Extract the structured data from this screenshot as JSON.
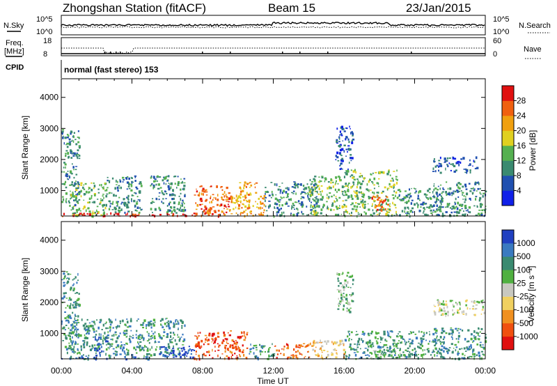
{
  "header": {
    "title": "Zhongshan Station (fitACF)",
    "beam": "Beam 15",
    "date": "23/Jan/2015"
  },
  "strips": {
    "nsky_label": "N.Sky",
    "nsearch_label": "N.Search",
    "nsky_ticks": [
      "10^5",
      "10^0"
    ],
    "nsearch_ticks": [
      "10^5",
      "10^0"
    ],
    "freq_label_1": "Freq.",
    "freq_label_2": "[MHz]",
    "freq_ticks": [
      "18",
      "8"
    ],
    "nave_label": "Nave",
    "nave_ticks": [
      "60",
      "0"
    ],
    "cpid_label": "CPID",
    "cpid_value": "normal (fast stereo) 153"
  },
  "chart_data": [
    {
      "type": "heatmap",
      "panel": "power",
      "xlabel": "Time UT",
      "ylabel": "Slant Range [km]",
      "x_ticks": [
        "00:00",
        "04:00",
        "08:00",
        "12:00",
        "16:00",
        "20:00",
        "00:00"
      ],
      "xlim_hours": [
        0,
        24
      ],
      "y_ticks": [
        1000,
        2000,
        3000,
        4000
      ],
      "ylim": [
        180,
        4600
      ],
      "colorbar_label": "Power [dB]",
      "colorbar_ticks": [
        4,
        8,
        12,
        16,
        20,
        24,
        28
      ],
      "colorbar_range": [
        0,
        32
      ],
      "colors": [
        "#1020e8",
        "#2050b0",
        "#3a8a70",
        "#55b050",
        "#e0d020",
        "#f0a010",
        "#f06010",
        "#e01010"
      ],
      "regions": [
        {
          "t0": 0.0,
          "t1": 1.0,
          "r0": 400,
          "r1": 3000,
          "level": 2
        },
        {
          "t0": 0.5,
          "t1": 2.5,
          "r0": 200,
          "r1": 1300,
          "level": 3
        },
        {
          "t0": 0.0,
          "t1": 9.0,
          "r0": 190,
          "r1": 300,
          "level": 7
        },
        {
          "t0": 2.5,
          "t1": 4.5,
          "r0": 300,
          "r1": 1500,
          "level": 2
        },
        {
          "t0": 5.0,
          "t1": 7.0,
          "r0": 300,
          "r1": 1500,
          "level": 2
        },
        {
          "t0": 7.5,
          "t1": 9.5,
          "r0": 200,
          "r1": 1200,
          "level": 6
        },
        {
          "t0": 9.5,
          "t1": 11.5,
          "r0": 200,
          "r1": 900,
          "level": 5
        },
        {
          "t0": 10.0,
          "t1": 11.0,
          "r0": 800,
          "r1": 1300,
          "level": 5
        },
        {
          "t0": 11.5,
          "t1": 14.5,
          "r0": 200,
          "r1": 1300,
          "level": 2
        },
        {
          "t0": 14.0,
          "t1": 16.0,
          "r0": 200,
          "r1": 1500,
          "level": 3
        },
        {
          "t0": 15.5,
          "t1": 16.5,
          "r0": 1700,
          "r1": 3100,
          "level": 1
        },
        {
          "t0": 16.0,
          "t1": 19.0,
          "r0": 200,
          "r1": 1700,
          "level": 3
        },
        {
          "t0": 17.5,
          "t1": 18.5,
          "r0": 400,
          "r1": 900,
          "level": 6
        },
        {
          "t0": 19.0,
          "t1": 21.5,
          "r0": 200,
          "r1": 1100,
          "level": 2
        },
        {
          "t0": 21.0,
          "t1": 23.5,
          "r0": 1600,
          "r1": 2100,
          "level": 1
        },
        {
          "t0": 21.0,
          "t1": 24.0,
          "r0": 200,
          "r1": 1300,
          "level": 2
        }
      ]
    },
    {
      "type": "heatmap",
      "panel": "velocity",
      "xlabel": "Time UT",
      "ylabel": "Slant Range [km]",
      "x_ticks": [
        "00:00",
        "04:00",
        "08:00",
        "12:00",
        "16:00",
        "20:00",
        "00:00"
      ],
      "xlim_hours": [
        0,
        24
      ],
      "y_ticks": [
        1000,
        2000,
        3000,
        4000
      ],
      "ylim": [
        180,
        4600
      ],
      "colorbar_label": "Velocity [m s⁻¹]",
      "colorbar_ticks": [
        "1000",
        "500",
        "100",
        "25",
        "-25",
        "-100",
        "-500",
        "-1000"
      ],
      "colors": [
        "#2040c0",
        "#3a7ac0",
        "#3a8a70",
        "#50b040",
        "#c8c8c0",
        "#f0d060",
        "#f09020",
        "#f05010",
        "#e01010"
      ],
      "regions": [
        {
          "t0": 0.0,
          "t1": 1.0,
          "r0": 400,
          "r1": 3000,
          "level": 2
        },
        {
          "t0": 0.5,
          "t1": 7.0,
          "r0": 300,
          "r1": 1500,
          "level": 2
        },
        {
          "t0": 1.8,
          "t1": 2.6,
          "r0": 200,
          "r1": 900,
          "level": 0
        },
        {
          "t0": 0.0,
          "t1": 5.0,
          "r0": 190,
          "r1": 300,
          "level": 1
        },
        {
          "t0": 5.5,
          "t1": 7.5,
          "r0": 200,
          "r1": 600,
          "level": 0
        },
        {
          "t0": 7.5,
          "t1": 10.5,
          "r0": 200,
          "r1": 1100,
          "level": 7
        },
        {
          "t0": 10.5,
          "t1": 12.0,
          "r0": 200,
          "r1": 700,
          "level": 2
        },
        {
          "t0": 12.0,
          "t1": 14.0,
          "r0": 200,
          "r1": 700,
          "level": 7
        },
        {
          "t0": 14.0,
          "t1": 16.0,
          "r0": 200,
          "r1": 800,
          "level": 5
        },
        {
          "t0": 15.5,
          "t1": 16.5,
          "r0": 1700,
          "r1": 3000,
          "level": 3
        },
        {
          "t0": 16.0,
          "t1": 21.5,
          "r0": 200,
          "r1": 1100,
          "level": 2
        },
        {
          "t0": 17.5,
          "t1": 19.5,
          "r0": 200,
          "r1": 500,
          "level": 3
        },
        {
          "t0": 21.0,
          "t1": 24.0,
          "r0": 1600,
          "r1": 2100,
          "level": 4
        },
        {
          "t0": 21.0,
          "t1": 24.0,
          "r0": 200,
          "r1": 1200,
          "level": 2
        }
      ]
    }
  ]
}
